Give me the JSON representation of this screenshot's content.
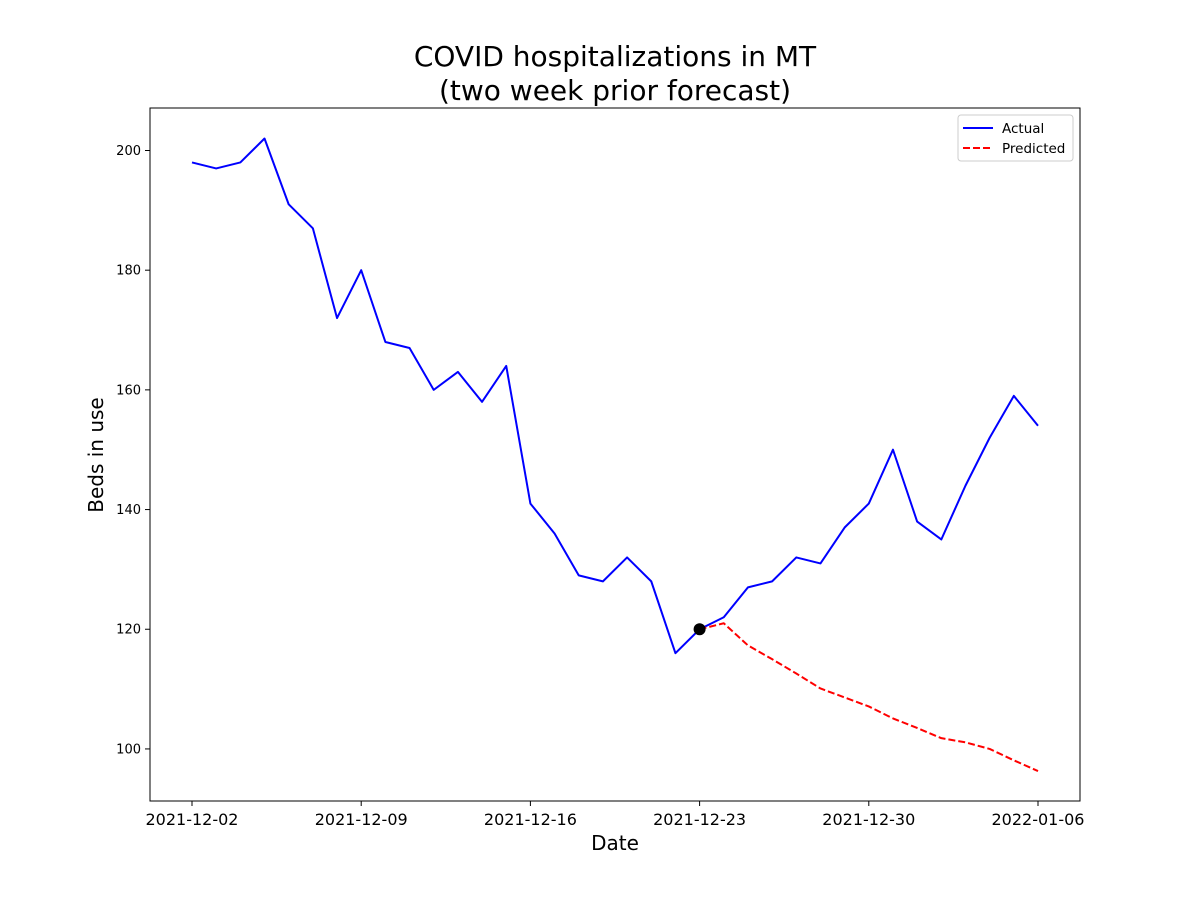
{
  "chart_data": {
    "type": "line",
    "title": "COVID hospitalizations in MT",
    "subtitle": "(two week prior forecast)",
    "xlabel": "Date",
    "ylabel": "Beds in use",
    "x_range": [
      "2021-12-02",
      "2022-01-06"
    ],
    "ylim": [
      91.3,
      207.1
    ],
    "x_ticks": [
      "2021-12-02",
      "2021-12-09",
      "2021-12-16",
      "2021-12-23",
      "2021-12-30",
      "2022-01-06"
    ],
    "y_ticks": [
      100,
      120,
      140,
      160,
      180,
      200
    ],
    "grid": false,
    "legend_position": "top-right",
    "series": [
      {
        "name": "Actual",
        "color": "#0000ff",
        "line_style": "solid",
        "x": [
          "2021-12-02",
          "2021-12-03",
          "2021-12-04",
          "2021-12-05",
          "2021-12-06",
          "2021-12-07",
          "2021-12-08",
          "2021-12-09",
          "2021-12-10",
          "2021-12-11",
          "2021-12-12",
          "2021-12-13",
          "2021-12-14",
          "2021-12-15",
          "2021-12-16",
          "2021-12-17",
          "2021-12-18",
          "2021-12-19",
          "2021-12-20",
          "2021-12-21",
          "2021-12-22",
          "2021-12-23",
          "2021-12-24",
          "2021-12-25",
          "2021-12-26",
          "2021-12-27",
          "2021-12-28",
          "2021-12-29",
          "2021-12-30",
          "2021-12-31",
          "2022-01-01",
          "2022-01-02",
          "2022-01-03",
          "2022-01-04",
          "2022-01-05",
          "2022-01-06"
        ],
        "values": [
          198,
          197,
          198,
          202,
          191,
          187,
          172,
          180,
          168,
          167,
          160,
          163,
          158,
          164,
          141,
          136,
          129,
          128,
          132,
          128,
          116,
          120,
          122,
          127,
          128,
          132,
          131,
          137,
          141,
          150,
          138,
          135,
          144,
          152,
          159,
          154
        ]
      },
      {
        "name": "Predicted",
        "color": "#ff0000",
        "line_style": "dashed",
        "x": [
          "2021-12-23",
          "2021-12-24",
          "2021-12-25",
          "2021-12-26",
          "2021-12-27",
          "2021-12-28",
          "2021-12-29",
          "2021-12-30",
          "2021-12-31",
          "2022-01-01",
          "2022-01-02",
          "2022-01-03",
          "2022-01-04",
          "2022-01-05",
          "2022-01-06"
        ],
        "values": [
          120,
          121,
          117.3,
          115,
          112.6,
          110.1,
          108.6,
          107.1,
          105.1,
          103.5,
          101.8,
          101.1,
          100.0,
          98.1,
          96.3
        ]
      }
    ],
    "marker": {
      "x": "2021-12-23",
      "value": 120,
      "color": "#000000"
    }
  }
}
